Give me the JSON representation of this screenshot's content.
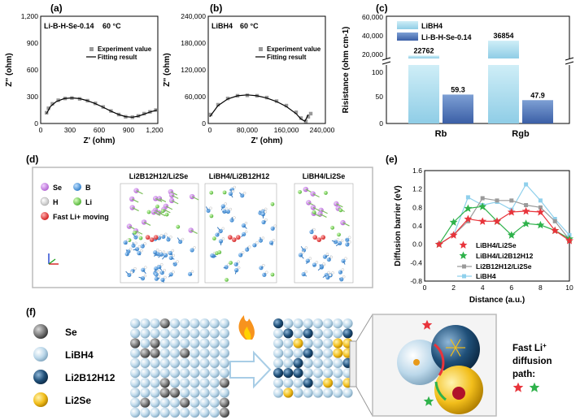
{
  "panels": {
    "a": {
      "label": "(a)",
      "annotation": "Li-B-H-Se-0.14",
      "temperature": "60 °C",
      "xlabel": "Z' (ohm)",
      "ylabel": "Z'' (ohm)",
      "xticks": [
        "0",
        "300",
        "600",
        "900",
        "1,200"
      ],
      "yticks": [
        "0",
        "300",
        "600",
        "900",
        "1,200"
      ],
      "legend": [
        "Experiment value",
        "Fitting result"
      ]
    },
    "b": {
      "label": "(b)",
      "annotation": "LiBH4",
      "temperature": "60 °C",
      "xlabel": "Z' (ohm)",
      "ylabel": "Z'' (ohm)",
      "xticks": [
        "0",
        "80,000",
        "160,000",
        "240,000"
      ],
      "yticks": [
        "0",
        "60,000",
        "120,000",
        "180,000",
        "240,000"
      ],
      "legend": [
        "Experiment value",
        "Fitting result"
      ]
    },
    "c": {
      "label": "(c)",
      "ylabel": "Risistance (ohm cm-1)",
      "yticks_upper": [
        "20,000",
        "40,000",
        "60,000"
      ],
      "yticks_lower": [
        "0",
        "50",
        "100"
      ],
      "legend": [
        "LiBH4",
        "Li-B-H-Se-0.14"
      ],
      "categories": [
        "Rb",
        "Rgb"
      ],
      "value_labels": [
        "22762",
        "59.3",
        "36854",
        "47.9"
      ]
    },
    "d": {
      "label": "(d)",
      "legend": [
        "Se",
        "B",
        "H",
        "Li",
        "Fast Li+ moving"
      ],
      "structure_titles": [
        "Li2B12H12/Li2Se",
        "LiBH4/Li2B12H12",
        "LiBH4/Li2Se"
      ]
    },
    "e": {
      "label": "(e)",
      "xlabel": "Distance (a.u.)",
      "ylabel": "Diffusion barrier (eV)",
      "xticks": [
        "0",
        "2",
        "4",
        "6",
        "8",
        "10"
      ],
      "yticks": [
        "-0.8",
        "-0.4",
        "0.0",
        "0.4",
        "0.8",
        "1.2",
        "1.6"
      ],
      "legend": [
        "LiBH4/Li2Se",
        "LiBH4/Li2B12H12",
        "Li2B12H12/Li2Se",
        "LiBH4"
      ]
    },
    "f": {
      "label": "(f)",
      "legend": [
        "Se",
        "LiBH4",
        "Li2B12H12",
        "Li2Se"
      ],
      "caption": "Fast Li+ diffusion path:"
    }
  },
  "colors": {
    "libh4_bar": "#a9dcec",
    "composite_bar": "#5b80c0",
    "star_red": "#e8343b",
    "star_green": "#2fb24b",
    "gray_series": "#9a9a9a",
    "lightblue_series": "#8fd0ec",
    "se_ball": "#777777",
    "libh4_ball": "#bcd8ea",
    "li2b12h12_ball": "#1f4f78",
    "li2se_ball": "#f2be1b"
  },
  "chart_data": [
    {
      "type": "scatter",
      "panel": "a",
      "xlim": [
        0,
        1200
      ],
      "ylim": [
        0,
        1200
      ],
      "series": [
        {
          "name": "Experiment value",
          "x": [
            60,
            80,
            120,
            180,
            250,
            320,
            400,
            480,
            560,
            640,
            720,
            800,
            870,
            940,
            1000,
            1060,
            1120,
            1180
          ],
          "y": [
            120,
            170,
            220,
            260,
            280,
            285,
            275,
            255,
            225,
            185,
            140,
            100,
            75,
            70,
            85,
            110,
            130,
            150
          ]
        },
        {
          "name": "Fitting result",
          "x": [
            60,
            100,
            160,
            240,
            320,
            400,
            480,
            560,
            640,
            720,
            800,
            870,
            940,
            1000,
            1060,
            1120,
            1190
          ],
          "y": [
            110,
            190,
            245,
            278,
            286,
            278,
            255,
            222,
            182,
            138,
            100,
            76,
            70,
            82,
            105,
            128,
            150
          ]
        }
      ]
    },
    {
      "type": "scatter",
      "panel": "b",
      "xlim": [
        0,
        240000
      ],
      "ylim": [
        0,
        240000
      ],
      "series": [
        {
          "name": "Experiment value",
          "x": [
            5000,
            20000,
            40000,
            60000,
            80000,
            100000,
            120000,
            140000,
            160000,
            180000,
            190000,
            200000,
            205000,
            210000
          ],
          "y": [
            20000,
            42000,
            56000,
            62000,
            63000,
            62000,
            58000,
            50000,
            40000,
            25000,
            12000,
            5000,
            15000,
            22000
          ]
        },
        {
          "name": "Fitting result",
          "x": [
            3000,
            20000,
            40000,
            60000,
            80000,
            100000,
            120000,
            140000,
            160000,
            180000,
            190000,
            198000,
            205000
          ],
          "y": [
            15000,
            40000,
            55000,
            62000,
            64000,
            62000,
            57000,
            49000,
            38000,
            22000,
            10000,
            5000,
            20000
          ]
        }
      ]
    },
    {
      "type": "bar",
      "panel": "c",
      "categories": [
        "Rb",
        "Rgb"
      ],
      "series": [
        {
          "name": "LiBH4",
          "values": [
            22762,
            36854
          ]
        },
        {
          "name": "Li-B-H-Se-0.14",
          "values": [
            59.3,
            47.9
          ]
        }
      ],
      "ylim_lower": [
        0,
        120
      ],
      "ylim_upper": [
        20000,
        60000
      ]
    },
    {
      "type": "line",
      "panel": "e",
      "xlim": [
        0,
        10
      ],
      "ylim": [
        -0.8,
        1.6
      ],
      "series": [
        {
          "name": "LiBH4/Li2Se",
          "x": [
            1,
            2,
            3,
            4,
            5,
            6,
            7,
            8,
            9,
            10
          ],
          "y": [
            0.0,
            0.2,
            0.55,
            0.5,
            0.5,
            0.7,
            0.72,
            0.7,
            0.3,
            0.08
          ]
        },
        {
          "name": "LiBH4/Li2B12H12",
          "x": [
            1,
            2,
            3,
            4,
            5,
            6,
            7,
            8,
            9,
            10
          ],
          "y": [
            0.0,
            0.48,
            0.78,
            0.82,
            0.5,
            0.2,
            0.45,
            0.42,
            0.3,
            0.12
          ]
        },
        {
          "name": "Li2B12H12/Li2Se",
          "x": [
            1,
            2,
            3,
            4,
            5,
            6,
            7,
            8,
            9,
            10
          ],
          "y": [
            0.0,
            0.2,
            0.5,
            1.0,
            0.95,
            0.95,
            0.85,
            0.8,
            0.5,
            0.1
          ]
        },
        {
          "name": "LiBH4",
          "x": [
            1,
            2,
            3,
            4,
            5,
            6,
            7,
            8,
            9,
            10
          ],
          "y": [
            0.0,
            0.2,
            1.02,
            0.85,
            0.92,
            0.75,
            1.3,
            0.95,
            0.55,
            0.2
          ]
        }
      ]
    }
  ]
}
